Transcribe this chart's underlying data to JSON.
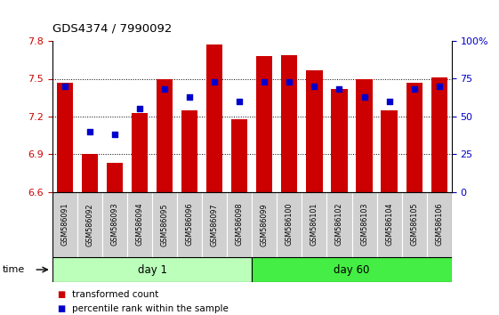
{
  "title": "GDS4374 / 7990092",
  "samples": [
    "GSM586091",
    "GSM586092",
    "GSM586093",
    "GSM586094",
    "GSM586095",
    "GSM586096",
    "GSM586097",
    "GSM586098",
    "GSM586099",
    "GSM586100",
    "GSM586101",
    "GSM586102",
    "GSM586103",
    "GSM586104",
    "GSM586105",
    "GSM586106"
  ],
  "bar_values": [
    7.47,
    6.9,
    6.83,
    7.23,
    7.5,
    7.25,
    7.77,
    7.18,
    7.68,
    7.69,
    7.57,
    7.42,
    7.5,
    7.25,
    7.47,
    7.51
  ],
  "percentiles": [
    70,
    40,
    38,
    55,
    68,
    63,
    73,
    60,
    73,
    73,
    70,
    68,
    63,
    60,
    68,
    70
  ],
  "bar_color": "#cc0000",
  "dot_color": "#0000cc",
  "ylim": [
    6.6,
    7.8
  ],
  "yticks": [
    6.6,
    6.9,
    7.2,
    7.5,
    7.8
  ],
  "right_yticks": [
    0,
    25,
    50,
    75,
    100
  ],
  "groups": [
    {
      "label": "day 1",
      "start": 0,
      "end": 8
    },
    {
      "label": "day 60",
      "start": 8,
      "end": 16
    }
  ],
  "group_colors": [
    "#bbffbb",
    "#44ee44"
  ],
  "legend_items": [
    "transformed count",
    "percentile rank within the sample"
  ],
  "tick_label_color_left": "#cc0000",
  "tick_label_color_right": "#0000cc",
  "xtick_bg": "#d0d0d0",
  "xtick_border": "#888888"
}
